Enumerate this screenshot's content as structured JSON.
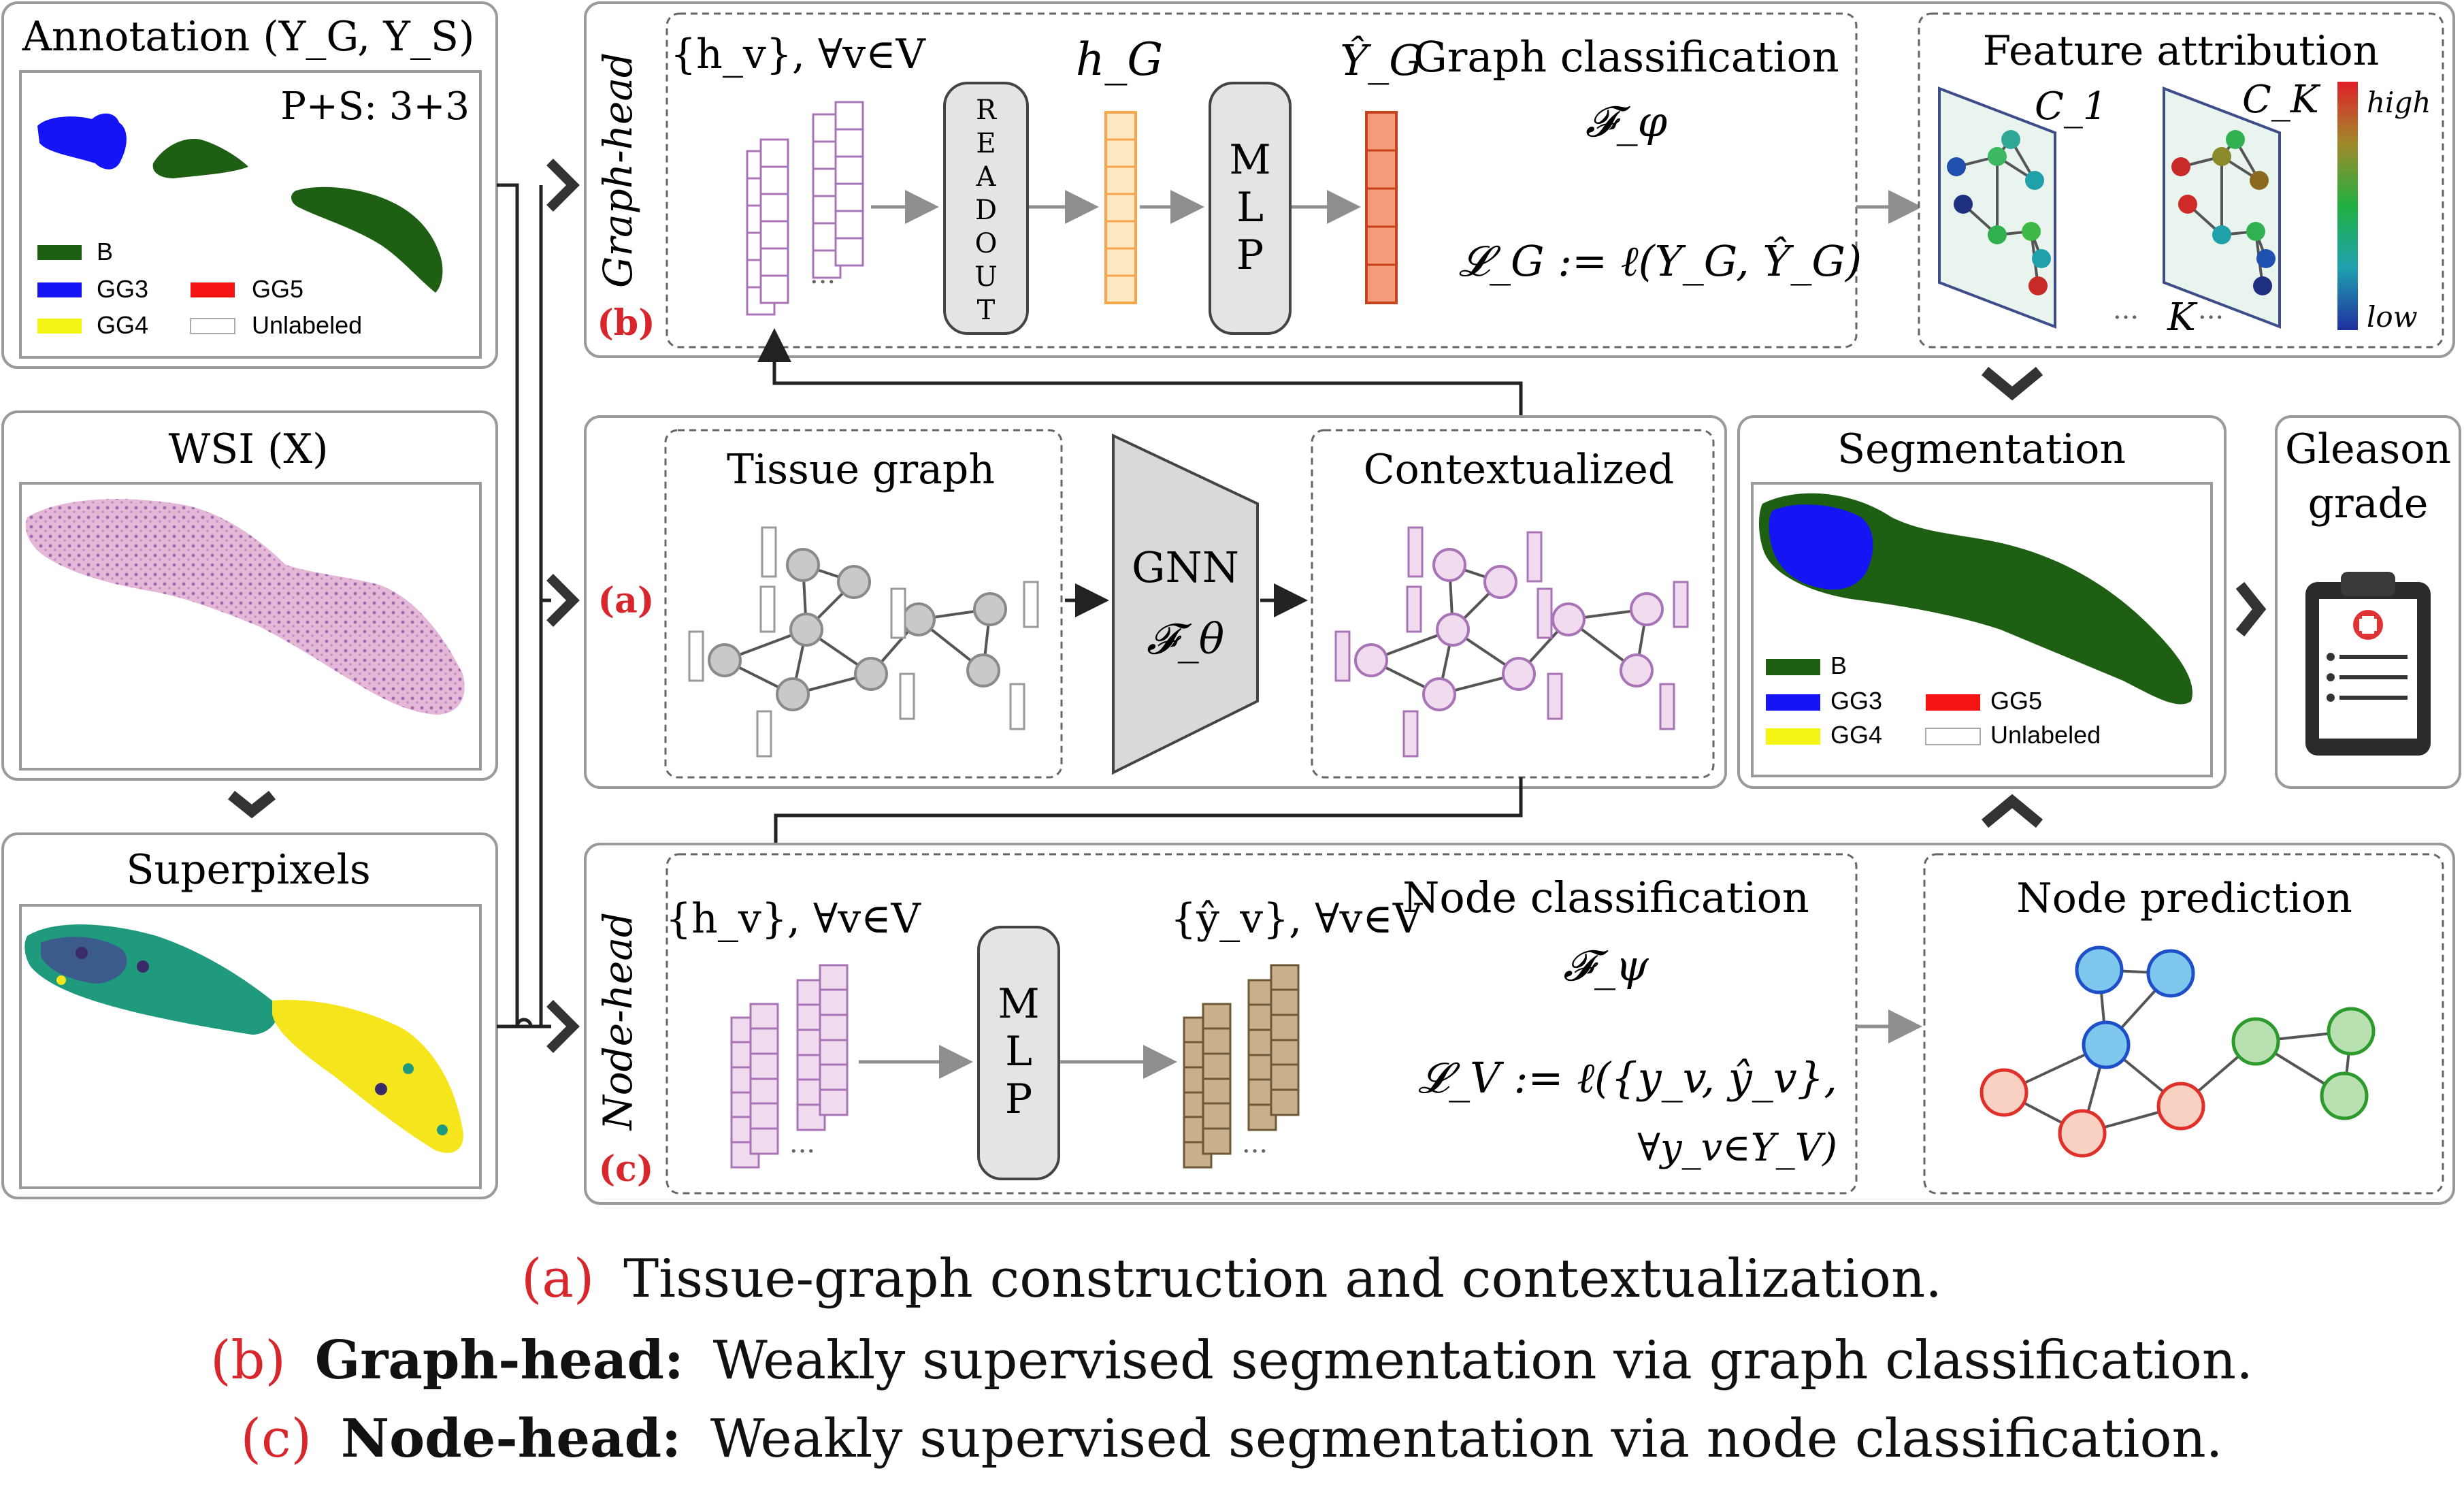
{
  "left_panel": {
    "annotation_title": "Annotation (Y_G, Y_S)",
    "ps_label": "P+S: 3+3",
    "legend": {
      "b": "B",
      "gg3": "GG3",
      "gg4": "GG4",
      "gg5": "GG5",
      "unlabeled": "Unlabeled"
    },
    "wsi_title": "WSI (X)",
    "superpixels_title": "Superpixels"
  },
  "graph_head": {
    "side_label": "Graph-head",
    "tag": "(b)",
    "hv_label": "{h_v}, ∀v∈V",
    "readout_letters": [
      "R",
      "E",
      "A",
      "D",
      "O",
      "U",
      "T"
    ],
    "hg_label": "h_G",
    "mlp_letters": [
      "M",
      "L",
      "P"
    ],
    "yg_label": "Ŷ_G",
    "title": "Graph classification",
    "func": "𝓕_φ",
    "loss": "𝓛_G := ℓ(Y_G, Ŷ_G)"
  },
  "feature_attr": {
    "title": "Feature attribution",
    "c1": "C_1",
    "ck": "C_K",
    "k_label": "K",
    "high": "high",
    "low": "low"
  },
  "tissue": {
    "tag": "(a)",
    "tissue_graph": "Tissue graph",
    "gnn": "GNN",
    "gnn_func": "𝓕_θ",
    "contextualized": "Contextualized"
  },
  "segmentation": {
    "title": "Segmentation",
    "legend": {
      "b": "B",
      "gg3": "GG3",
      "gg4": "GG4",
      "gg5": "GG5",
      "unlabeled": "Unlabeled"
    }
  },
  "gleason": {
    "line1": "Gleason",
    "line2": "grade"
  },
  "node_head": {
    "side_label": "Node-head",
    "tag": "(c)",
    "hv_label": "{h_v}, ∀v∈V",
    "mlp_letters": [
      "M",
      "L",
      "P"
    ],
    "yv_label": "{ŷ_v}, ∀v∈V",
    "title": "Node classification",
    "func": "𝓕_ψ",
    "loss_line1": "𝓛_V := ℓ({y_v, ŷ_v},",
    "loss_line2": "∀y_v∈Y_V)"
  },
  "node_prediction": {
    "title": "Node prediction"
  },
  "captions": {
    "a_tag": "(a)",
    "a_text": "Tissue-graph construction and contextualization.",
    "b_tag": "(b)",
    "b_bold": "Graph-head:",
    "b_text": "Weakly supervised segmentation via graph classification.",
    "c_tag": "(c)",
    "c_bold": "Node-head:",
    "c_text": "Weakly supervised segmentation via node classification."
  },
  "colors": {
    "benign": "#1e5f14",
    "gg3": "#1414f5",
    "gg4": "#f5f514",
    "gg5": "#f51414",
    "accent_red": "#d7262c",
    "purple": "#a874b7",
    "orange": "#f5a64a",
    "salmon": "#f08a5d",
    "brown": "#c8b08c"
  }
}
